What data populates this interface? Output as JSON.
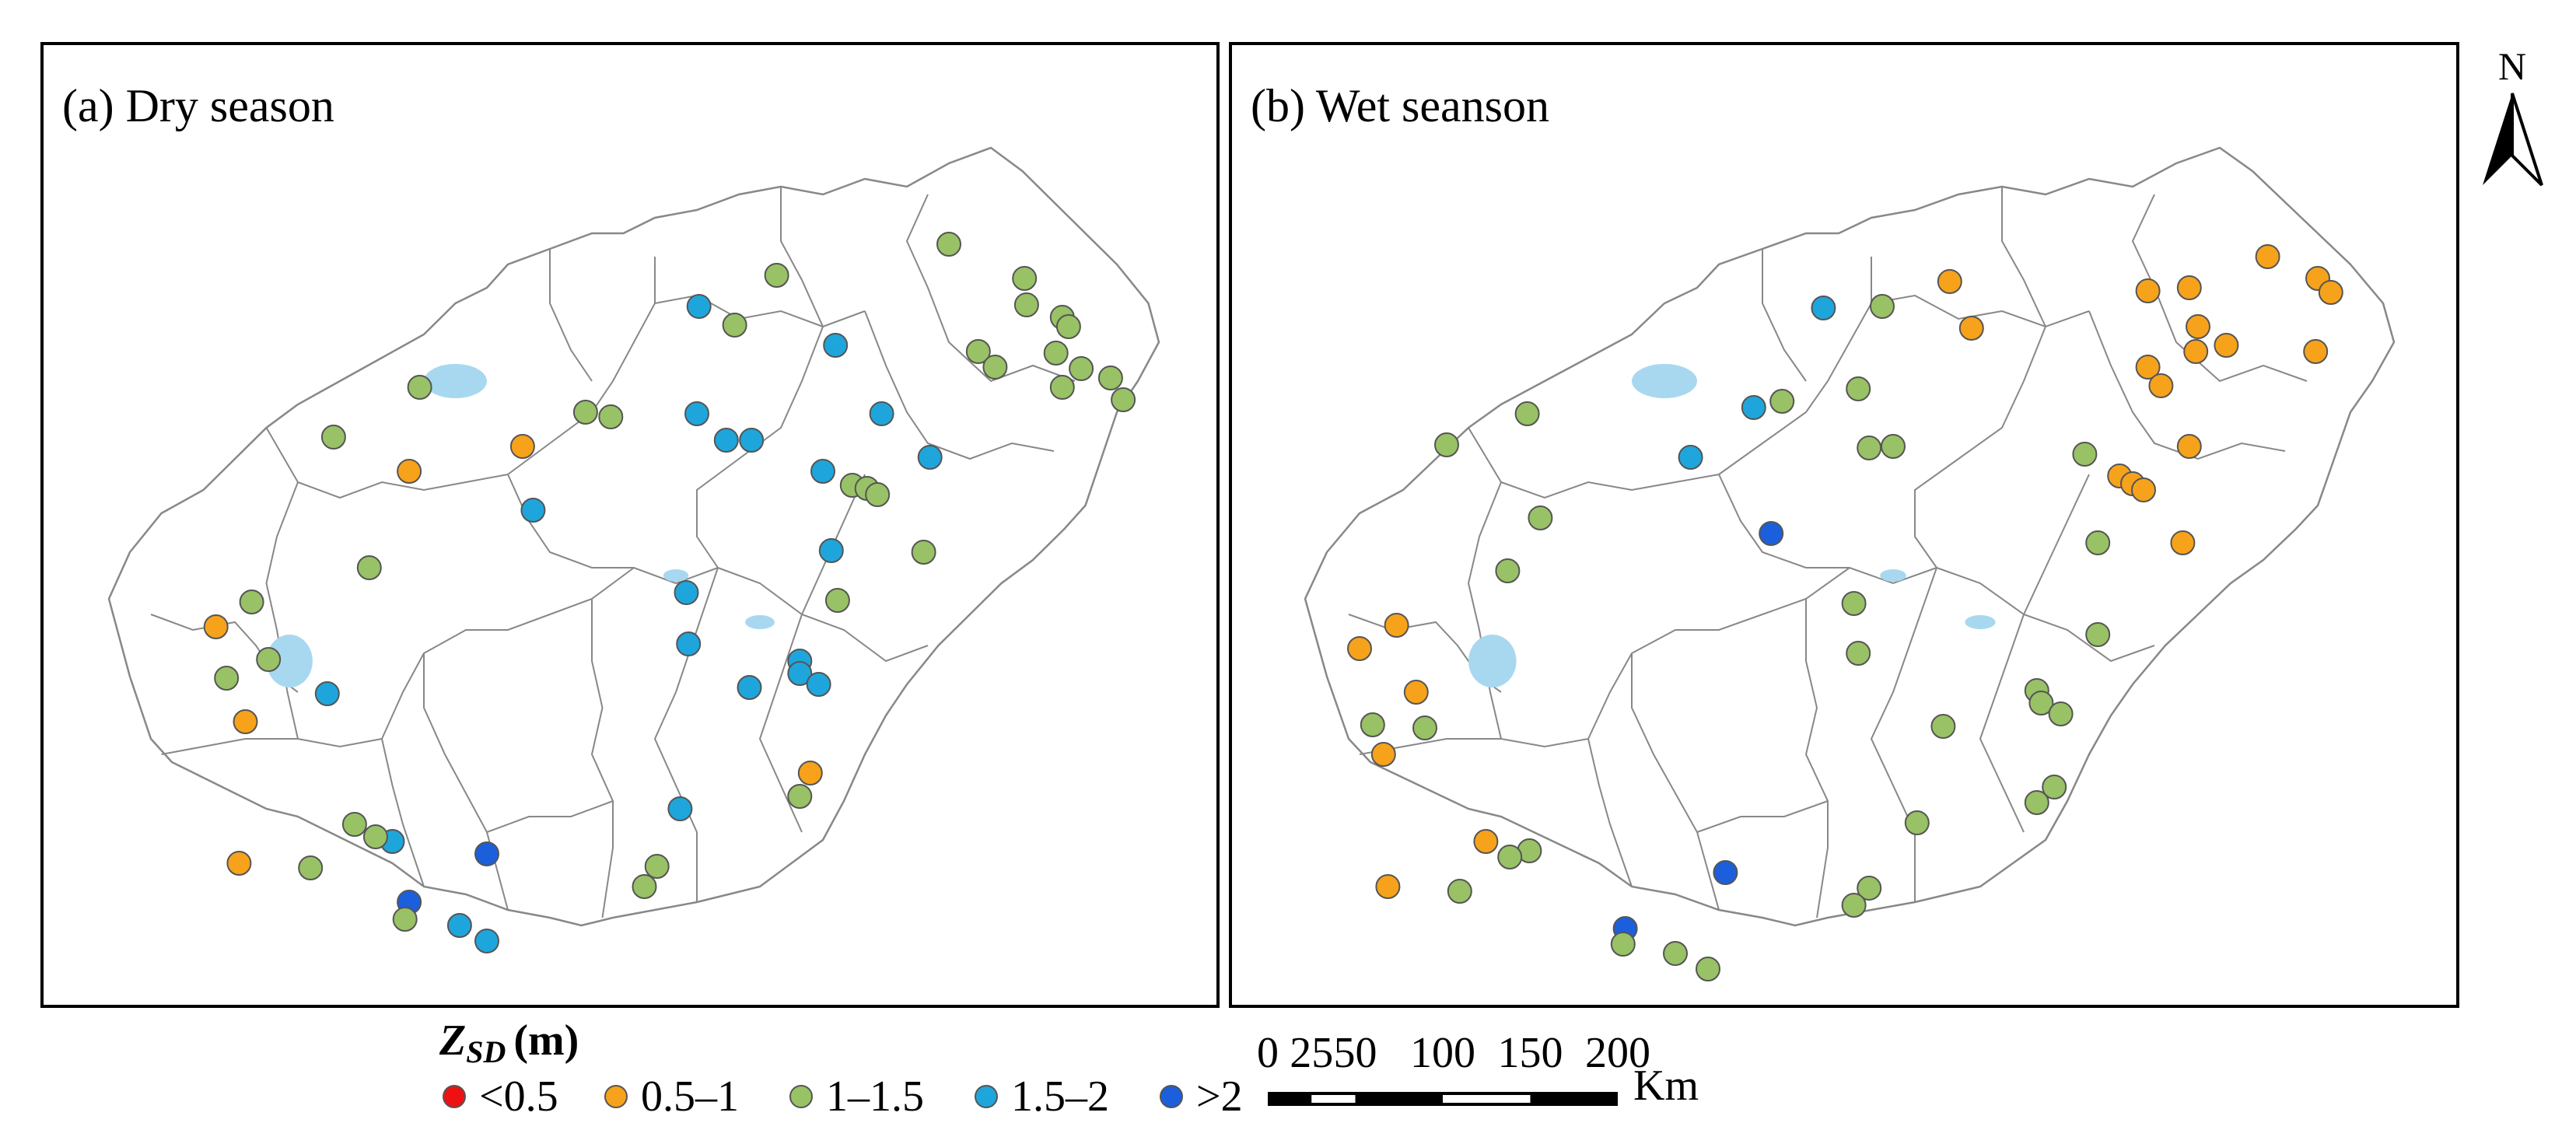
{
  "panels": [
    {
      "label": "(a) Dry season",
      "points": [
        {
          "x": 0.636,
          "y": 0.164,
          "c": "1-1.5"
        },
        {
          "x": 0.562,
          "y": 0.204,
          "c": "1.5-2"
        },
        {
          "x": 0.596,
          "y": 0.228,
          "c": "1-1.5"
        },
        {
          "x": 0.692,
          "y": 0.254,
          "c": "1.5-2"
        },
        {
          "x": 0.8,
          "y": 0.124,
          "c": "1-1.5"
        },
        {
          "x": 0.872,
          "y": 0.168,
          "c": "1-1.5"
        },
        {
          "x": 0.874,
          "y": 0.202,
          "c": "1-1.5"
        },
        {
          "x": 0.908,
          "y": 0.218,
          "c": "1-1.5"
        },
        {
          "x": 0.914,
          "y": 0.23,
          "c": "1-1.5"
        },
        {
          "x": 0.902,
          "y": 0.264,
          "c": "1-1.5"
        },
        {
          "x": 0.926,
          "y": 0.284,
          "c": "1-1.5"
        },
        {
          "x": 0.954,
          "y": 0.296,
          "c": "1-1.5"
        },
        {
          "x": 0.828,
          "y": 0.262,
          "c": "1-1.5"
        },
        {
          "x": 0.844,
          "y": 0.282,
          "c": "1-1.5"
        },
        {
          "x": 0.908,
          "y": 0.308,
          "c": "1-1.5"
        },
        {
          "x": 0.966,
          "y": 0.324,
          "c": "1-1.5"
        },
        {
          "x": 0.56,
          "y": 0.342,
          "c": "1.5-2"
        },
        {
          "x": 0.736,
          "y": 0.342,
          "c": "1.5-2"
        },
        {
          "x": 0.588,
          "y": 0.376,
          "c": "1.5-2"
        },
        {
          "x": 0.612,
          "y": 0.376,
          "c": "1.5-2"
        },
        {
          "x": 0.454,
          "y": 0.34,
          "c": "1-1.5"
        },
        {
          "x": 0.478,
          "y": 0.346,
          "c": "1-1.5"
        },
        {
          "x": 0.296,
          "y": 0.308,
          "c": "1-1.5"
        },
        {
          "x": 0.214,
          "y": 0.372,
          "c": "1-1.5"
        },
        {
          "x": 0.394,
          "y": 0.384,
          "c": "0.5-1"
        },
        {
          "x": 0.286,
          "y": 0.416,
          "c": "0.5-1"
        },
        {
          "x": 0.404,
          "y": 0.466,
          "c": "1.5-2"
        },
        {
          "x": 0.68,
          "y": 0.416,
          "c": "1.5-2"
        },
        {
          "x": 0.708,
          "y": 0.434,
          "c": "1-1.5"
        },
        {
          "x": 0.722,
          "y": 0.438,
          "c": "1-1.5"
        },
        {
          "x": 0.732,
          "y": 0.446,
          "c": "1-1.5"
        },
        {
          "x": 0.782,
          "y": 0.398,
          "c": "1.5-2"
        },
        {
          "x": 0.688,
          "y": 0.518,
          "c": "1.5-2"
        },
        {
          "x": 0.776,
          "y": 0.52,
          "c": "1-1.5"
        },
        {
          "x": 0.248,
          "y": 0.54,
          "c": "1-1.5"
        },
        {
          "x": 0.55,
          "y": 0.572,
          "c": "1.5-2"
        },
        {
          "x": 0.694,
          "y": 0.582,
          "c": "1-1.5"
        },
        {
          "x": 0.552,
          "y": 0.638,
          "c": "1.5-2"
        },
        {
          "x": 0.136,
          "y": 0.584,
          "c": "1-1.5"
        },
        {
          "x": 0.102,
          "y": 0.616,
          "c": "0.5-1"
        },
        {
          "x": 0.152,
          "y": 0.658,
          "c": "1-1.5"
        },
        {
          "x": 0.112,
          "y": 0.682,
          "c": "1-1.5"
        },
        {
          "x": 0.208,
          "y": 0.702,
          "c": "1.5-2"
        },
        {
          "x": 0.13,
          "y": 0.738,
          "c": "0.5-1"
        },
        {
          "x": 0.658,
          "y": 0.66,
          "c": "1.5-2"
        },
        {
          "x": 0.658,
          "y": 0.676,
          "c": "1.5-2"
        },
        {
          "x": 0.61,
          "y": 0.694,
          "c": "1.5-2"
        },
        {
          "x": 0.676,
          "y": 0.69,
          "c": "1.5-2"
        },
        {
          "x": 0.668,
          "y": 0.804,
          "c": "0.5-1"
        },
        {
          "x": 0.658,
          "y": 0.834,
          "c": "1-1.5"
        },
        {
          "x": 0.544,
          "y": 0.85,
          "c": "1.5-2"
        },
        {
          "x": 0.234,
          "y": 0.87,
          "c": "1-1.5"
        },
        {
          "x": 0.27,
          "y": 0.892,
          "c": "1.5-2"
        },
        {
          "x": 0.254,
          "y": 0.886,
          "c": "1-1.5"
        },
        {
          "x": 0.36,
          "y": 0.908,
          "c": "2+"
        },
        {
          "x": 0.124,
          "y": 0.92,
          "c": "0.5-1"
        },
        {
          "x": 0.192,
          "y": 0.926,
          "c": "1-1.5"
        },
        {
          "x": 0.522,
          "y": 0.924,
          "c": "1-1.5"
        },
        {
          "x": 0.51,
          "y": 0.95,
          "c": "1-1.5"
        },
        {
          "x": 0.286,
          "y": 0.97,
          "c": "2+"
        },
        {
          "x": 0.282,
          "y": 0.992,
          "c": "1-1.5"
        },
        {
          "x": 0.334,
          "y": 1.0,
          "c": "1.5-2"
        },
        {
          "x": 0.36,
          "y": 1.02,
          "c": "1.5-2"
        }
      ]
    },
    {
      "label": "(b) Wet seanson",
      "points": [
        {
          "x": 0.884,
          "y": 0.14,
          "c": "0.5-1"
        },
        {
          "x": 0.592,
          "y": 0.172,
          "c": "0.5-1"
        },
        {
          "x": 0.93,
          "y": 0.168,
          "c": "0.5-1"
        },
        {
          "x": 0.942,
          "y": 0.186,
          "c": "0.5-1"
        },
        {
          "x": 0.774,
          "y": 0.184,
          "c": "0.5-1"
        },
        {
          "x": 0.812,
          "y": 0.18,
          "c": "0.5-1"
        },
        {
          "x": 0.476,
          "y": 0.206,
          "c": "1.5-2"
        },
        {
          "x": 0.53,
          "y": 0.204,
          "c": "1-1.5"
        },
        {
          "x": 0.612,
          "y": 0.232,
          "c": "0.5-1"
        },
        {
          "x": 0.82,
          "y": 0.23,
          "c": "0.5-1"
        },
        {
          "x": 0.846,
          "y": 0.254,
          "c": "0.5-1"
        },
        {
          "x": 0.818,
          "y": 0.262,
          "c": "0.5-1"
        },
        {
          "x": 0.774,
          "y": 0.282,
          "c": "0.5-1"
        },
        {
          "x": 0.928,
          "y": 0.262,
          "c": "0.5-1"
        },
        {
          "x": 0.786,
          "y": 0.306,
          "c": "0.5-1"
        },
        {
          "x": 0.508,
          "y": 0.31,
          "c": "1-1.5"
        },
        {
          "x": 0.412,
          "y": 0.334,
          "c": "1.5-2"
        },
        {
          "x": 0.438,
          "y": 0.326,
          "c": "1-1.5"
        },
        {
          "x": 0.204,
          "y": 0.342,
          "c": "1-1.5"
        },
        {
          "x": 0.13,
          "y": 0.382,
          "c": "1-1.5"
        },
        {
          "x": 0.518,
          "y": 0.386,
          "c": "1-1.5"
        },
        {
          "x": 0.54,
          "y": 0.384,
          "c": "1-1.5"
        },
        {
          "x": 0.354,
          "y": 0.398,
          "c": "1.5-2"
        },
        {
          "x": 0.716,
          "y": 0.394,
          "c": "1-1.5"
        },
        {
          "x": 0.812,
          "y": 0.384,
          "c": "0.5-1"
        },
        {
          "x": 0.748,
          "y": 0.422,
          "c": "0.5-1"
        },
        {
          "x": 0.76,
          "y": 0.432,
          "c": "0.5-1"
        },
        {
          "x": 0.77,
          "y": 0.44,
          "c": "0.5-1"
        },
        {
          "x": 0.216,
          "y": 0.476,
          "c": "1-1.5"
        },
        {
          "x": 0.428,
          "y": 0.496,
          "c": "2+"
        },
        {
          "x": 0.728,
          "y": 0.508,
          "c": "1-1.5"
        },
        {
          "x": 0.806,
          "y": 0.508,
          "c": "0.5-1"
        },
        {
          "x": 0.186,
          "y": 0.544,
          "c": "1-1.5"
        },
        {
          "x": 0.504,
          "y": 0.586,
          "c": "1-1.5"
        },
        {
          "x": 0.084,
          "y": 0.614,
          "c": "0.5-1"
        },
        {
          "x": 0.05,
          "y": 0.644,
          "c": "0.5-1"
        },
        {
          "x": 0.508,
          "y": 0.65,
          "c": "1-1.5"
        },
        {
          "x": 0.728,
          "y": 0.626,
          "c": "1-1.5"
        },
        {
          "x": 0.672,
          "y": 0.698,
          "c": "1-1.5"
        },
        {
          "x": 0.676,
          "y": 0.714,
          "c": "1-1.5"
        },
        {
          "x": 0.694,
          "y": 0.728,
          "c": "1-1.5"
        },
        {
          "x": 0.102,
          "y": 0.7,
          "c": "0.5-1"
        },
        {
          "x": 0.062,
          "y": 0.742,
          "c": "1-1.5"
        },
        {
          "x": 0.11,
          "y": 0.746,
          "c": "1-1.5"
        },
        {
          "x": 0.586,
          "y": 0.744,
          "c": "1-1.5"
        },
        {
          "x": 0.072,
          "y": 0.78,
          "c": "0.5-1"
        },
        {
          "x": 0.688,
          "y": 0.822,
          "c": "1-1.5"
        },
        {
          "x": 0.672,
          "y": 0.842,
          "c": "1-1.5"
        },
        {
          "x": 0.562,
          "y": 0.868,
          "c": "1-1.5"
        },
        {
          "x": 0.166,
          "y": 0.892,
          "c": "0.5-1"
        },
        {
          "x": 0.206,
          "y": 0.904,
          "c": "1-1.5"
        },
        {
          "x": 0.188,
          "y": 0.912,
          "c": "1-1.5"
        },
        {
          "x": 0.386,
          "y": 0.932,
          "c": "2+"
        },
        {
          "x": 0.076,
          "y": 0.95,
          "c": "0.5-1"
        },
        {
          "x": 0.142,
          "y": 0.956,
          "c": "1-1.5"
        },
        {
          "x": 0.518,
          "y": 0.952,
          "c": "1-1.5"
        },
        {
          "x": 0.504,
          "y": 0.974,
          "c": "1-1.5"
        },
        {
          "x": 0.294,
          "y": 1.004,
          "c": "2+"
        },
        {
          "x": 0.292,
          "y": 1.024,
          "c": "1-1.5"
        },
        {
          "x": 0.34,
          "y": 1.036,
          "c": "1-1.5"
        },
        {
          "x": 0.37,
          "y": 1.056,
          "c": "1-1.5"
        }
      ]
    }
  ],
  "north_label": "N",
  "legend": {
    "title_italic": "Z",
    "title_sub": "SD",
    "title_unit": "(m)",
    "items": [
      {
        "key": "0-0.5",
        "label": "<0.5",
        "color": "#ee1111"
      },
      {
        "key": "0.5-1",
        "label": "0.5–1",
        "color": "#f7a21b"
      },
      {
        "key": "1-1.5",
        "label": "1–1.5",
        "color": "#98c265"
      },
      {
        "key": "1.5-2",
        "label": "1.5–2",
        "color": "#1ea6dc"
      },
      {
        "key": "2+",
        "label": ">2",
        "color": "#1b5fdc"
      }
    ]
  },
  "scale_bar": {
    "ticks": [
      {
        "km": 0,
        "label": "0"
      },
      {
        "km": 25,
        "label": "25"
      },
      {
        "km": 50,
        "label": "50"
      },
      {
        "km": 100,
        "label": "100"
      },
      {
        "km": 150,
        "label": "150"
      },
      {
        "km": 200,
        "label": "200"
      }
    ],
    "unit": "Km"
  },
  "colors": {
    "reservoir": "#a8d8f0",
    "boundary": "#888888",
    "frame": "#000000"
  }
}
